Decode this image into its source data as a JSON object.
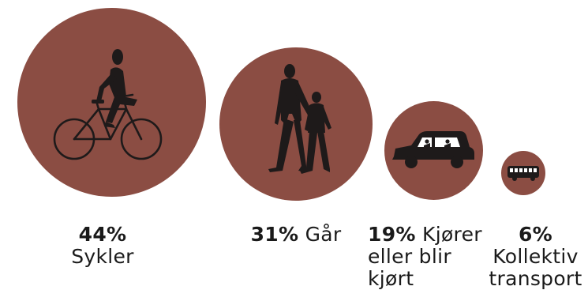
{
  "colors": {
    "circle": "#8b4d43",
    "figure": "#1e1a1a"
  },
  "items": [
    {
      "percent": "44%",
      "text": "Sykler",
      "icon": "bicycle-icon"
    },
    {
      "percent": "31%",
      "text": "Går",
      "icon": "pedestrians-icon"
    },
    {
      "percent": "19%",
      "text": "Kjører eller blir kjørt",
      "icon": "car-icon"
    },
    {
      "percent": "6%",
      "text": "Kollektiv transport",
      "icon": "bus-icon"
    }
  ]
}
